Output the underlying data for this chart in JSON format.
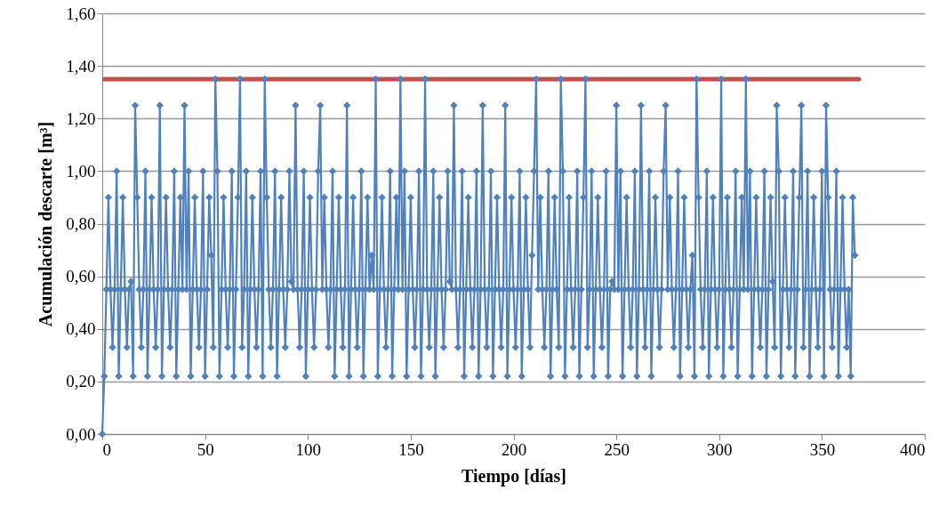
{
  "chart_data": {
    "type": "line",
    "xlabel": "Tiempo [días]",
    "ylabel": "Acumulación descarte [m³]",
    "xlim": [
      0,
      400
    ],
    "xticks": [
      0,
      50,
      100,
      150,
      200,
      250,
      300,
      350,
      400
    ],
    "ylim": [
      0,
      1.6
    ],
    "yticks": [
      {
        "value": 0,
        "label": "0,00"
      },
      {
        "value": 0.2,
        "label": "0,20"
      },
      {
        "value": 0.4,
        "label": "0,40"
      },
      {
        "value": 0.6,
        "label": "0,60"
      },
      {
        "value": 0.8,
        "label": "0,80"
      },
      {
        "value": 1,
        "label": "1,00"
      },
      {
        "value": 1.2,
        "label": "1,20"
      },
      {
        "value": 1.4,
        "label": "1,40"
      },
      {
        "value": 1.6,
        "label": "1,60"
      }
    ],
    "grid": "y",
    "marker": "diamond",
    "line_style": "solid",
    "x": [
      0,
      1,
      2,
      3,
      4,
      5,
      6,
      7,
      8,
      9,
      10,
      11,
      12,
      13,
      14,
      15,
      16,
      17,
      18,
      19,
      20,
      21,
      22,
      23,
      24,
      25,
      26,
      27,
      28,
      29,
      30,
      31,
      32,
      33,
      34,
      35,
      36,
      37,
      38,
      39,
      40,
      41,
      42,
      43,
      44,
      45,
      46,
      47,
      48,
      49,
      50,
      51,
      52,
      53,
      54,
      55,
      56,
      57,
      58,
      59,
      60,
      61,
      62,
      63,
      64,
      65,
      66,
      67,
      68,
      69,
      70,
      71,
      72,
      73,
      74,
      75,
      76,
      77,
      78,
      79,
      80,
      81,
      82,
      83,
      84,
      85,
      86,
      87,
      88,
      89,
      90,
      91,
      92,
      93,
      94,
      95,
      96,
      97,
      98,
      99,
      100,
      101,
      102,
      103,
      104,
      105,
      106,
      107,
      108,
      109,
      110,
      111,
      112,
      113,
      114,
      115,
      116,
      117,
      118,
      119,
      120,
      121,
      122,
      123,
      124,
      125,
      126,
      127,
      128,
      129,
      130,
      131,
      132,
      133,
      134,
      135,
      136,
      137,
      138,
      139,
      140,
      141,
      142,
      143,
      144,
      145,
      146,
      147,
      148,
      149,
      150,
      151,
      152,
      153,
      154,
      155,
      156,
      157,
      158,
      159,
      160,
      161,
      162,
      163,
      164,
      165,
      166,
      167,
      168,
      169,
      170,
      171,
      172,
      173,
      174,
      175,
      176,
      177,
      178,
      179,
      180,
      181,
      182,
      183,
      184,
      185,
      186,
      187,
      188,
      189,
      190,
      191,
      192,
      193,
      194,
      195,
      196,
      197,
      198,
      199,
      200,
      201,
      202,
      203,
      204,
      205,
      206,
      207,
      208,
      209,
      210,
      211,
      212,
      213,
      214,
      215,
      216,
      217,
      218,
      219,
      220,
      221,
      222,
      223,
      224,
      225,
      226,
      227,
      228,
      229,
      230,
      231,
      232,
      233,
      234,
      235,
      236,
      237,
      238,
      239,
      240,
      241,
      242,
      243,
      244,
      245,
      246,
      247,
      248,
      249,
      250,
      251,
      252,
      253,
      254,
      255,
      256,
      257,
      258,
      259,
      260,
      261,
      262,
      263,
      264,
      265,
      266,
      267,
      268,
      269,
      270,
      271,
      272,
      273,
      274,
      275,
      276,
      277,
      278,
      279,
      280,
      281,
      282,
      283,
      284,
      285,
      286,
      287,
      288,
      289,
      290,
      291,
      292,
      293,
      294,
      295,
      296,
      297,
      298,
      299,
      300,
      301,
      302,
      303,
      304,
      305,
      306,
      307,
      308,
      309,
      310,
      311,
      312,
      313,
      314,
      315,
      316,
      317,
      318,
      319,
      320,
      321,
      322,
      323,
      324,
      325,
      326,
      327,
      328,
      329,
      330,
      331,
      332,
      333,
      334,
      335,
      336,
      337,
      338,
      339,
      340,
      341,
      342,
      343,
      344,
      345,
      346,
      347,
      348,
      349,
      350,
      351,
      352,
      353,
      354,
      355,
      356,
      357,
      358,
      359,
      360,
      361,
      362,
      363,
      364,
      365,
      366
    ],
    "series": [
      {
        "type": "line",
        "marker": "none",
        "color": "#c0504d",
        "x": [
          1,
          368
        ],
        "values": [
          1.35,
          1.35
        ]
      },
      {
        "color": "#4f81bd",
        "values": [
          0,
          0.22,
          0.55,
          0.9,
          0.55,
          0.33,
          0.55,
          1,
          0.22,
          0.55,
          0.9,
          0.55,
          0.33,
          0.55,
          0.58,
          0.22,
          1.25,
          0.9,
          0.55,
          0.33,
          0.55,
          1,
          0.22,
          0.55,
          0.9,
          0.55,
          0.33,
          0.55,
          1.25,
          0.22,
          0.55,
          0.9,
          0.55,
          0.33,
          0.55,
          1,
          0.22,
          0.55,
          0.9,
          0.55,
          1.25,
          0.55,
          1,
          0.22,
          0.55,
          0.9,
          0.55,
          0.33,
          0.55,
          1,
          0.22,
          0.55,
          0.9,
          0.68,
          0.33,
          1.35,
          1,
          0.22,
          0.55,
          0.9,
          0.55,
          0.33,
          0.55,
          1,
          0.22,
          0.55,
          0.9,
          1.35,
          0.33,
          0.55,
          1,
          0.22,
          0.55,
          0.9,
          0.55,
          0.33,
          0.55,
          1,
          0.22,
          1.35,
          0.9,
          0.55,
          0.33,
          0.55,
          1,
          0.22,
          0.55,
          0.9,
          0.55,
          0.33,
          0.55,
          1,
          0.58,
          0.55,
          1.25,
          0.55,
          0.33,
          0.55,
          1,
          0.22,
          0.55,
          0.9,
          0.55,
          0.33,
          0.55,
          1,
          1.25,
          0.55,
          0.9,
          0.55,
          0.33,
          0.55,
          1,
          0.22,
          0.55,
          0.9,
          0.55,
          0.33,
          0.55,
          1.25,
          0.22,
          0.55,
          0.9,
          0.55,
          0.33,
          0.55,
          1,
          0.22,
          0.55,
          0.9,
          0.55,
          0.68,
          0.55,
          1.35,
          0.22,
          0.55,
          0.9,
          0.55,
          0.33,
          0.55,
          1,
          0.22,
          0.55,
          0.9,
          0.55,
          1.35,
          0.55,
          1,
          0.22,
          0.55,
          0.9,
          0.55,
          0.33,
          0.55,
          1,
          0.22,
          0.55,
          1.35,
          0.55,
          0.33,
          0.55,
          1,
          0.22,
          0.55,
          0.9,
          0.55,
          0.33,
          0.55,
          1,
          0.58,
          0.55,
          1.25,
          0.55,
          0.33,
          0.55,
          1,
          0.22,
          0.55,
          0.9,
          0.55,
          0.33,
          0.55,
          1,
          0.22,
          0.55,
          1.25,
          0.55,
          0.33,
          0.55,
          1,
          0.22,
          0.55,
          0.9,
          0.55,
          0.33,
          0.55,
          1.25,
          0.22,
          0.55,
          0.9,
          0.55,
          0.33,
          0.55,
          1,
          0.22,
          0.55,
          0.9,
          0.55,
          0.33,
          0.68,
          1,
          1.35,
          0.55,
          0.9,
          0.55,
          0.33,
          0.55,
          1,
          0.22,
          0.55,
          0.9,
          0.55,
          0.33,
          1.35,
          1,
          0.22,
          0.55,
          0.9,
          0.55,
          0.33,
          0.55,
          1,
          0.22,
          0.55,
          0.9,
          1.35,
          0.33,
          0.55,
          1,
          0.22,
          0.55,
          0.9,
          0.55,
          0.33,
          0.55,
          1,
          0.22,
          0.55,
          0.58,
          0.55,
          1.25,
          0.55,
          1,
          0.22,
          0.55,
          0.9,
          0.55,
          0.33,
          0.55,
          1,
          0.22,
          0.55,
          1.25,
          0.55,
          0.33,
          0.55,
          1,
          0.22,
          0.55,
          0.9,
          0.55,
          0.33,
          0.55,
          1,
          1.25,
          0.55,
          0.9,
          0.55,
          0.33,
          0.55,
          1,
          0.22,
          0.55,
          0.9,
          0.55,
          0.33,
          0.55,
          0.68,
          0.22,
          1.35,
          0.9,
          0.55,
          0.33,
          0.55,
          1,
          0.22,
          0.55,
          0.9,
          0.55,
          0.33,
          0.55,
          1.35,
          0.22,
          0.55,
          0.9,
          0.55,
          0.33,
          0.55,
          1,
          0.22,
          0.55,
          0.9,
          0.55,
          1.35,
          0.55,
          1,
          0.22,
          0.55,
          0.9,
          0.55,
          0.33,
          0.55,
          1,
          0.22,
          0.55,
          0.9,
          0.58,
          0.33,
          1.25,
          1,
          0.22,
          0.55,
          0.9,
          0.55,
          0.33,
          0.55,
          1,
          0.22,
          0.55,
          0.9,
          1.25,
          0.33,
          0.55,
          1,
          0.22,
          0.55,
          0.9,
          0.55,
          0.33,
          0.55,
          1,
          0.22,
          1.25,
          0.9,
          0.55,
          0.33,
          0.55,
          1,
          0.22,
          0.55,
          0.9,
          0.55,
          0.33,
          0.55,
          0.22,
          0.9,
          0.68
        ]
      }
    ]
  }
}
